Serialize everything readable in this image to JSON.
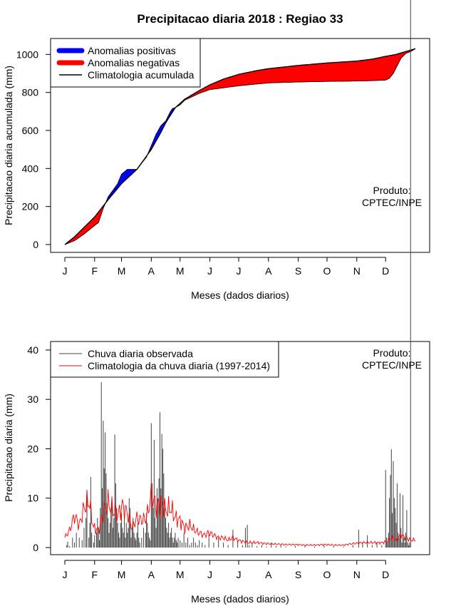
{
  "chart_data": [
    {
      "type": "area",
      "title": "Precipitacao diaria 2018 : Regiao 33",
      "xlabel": "Meses (dados diarios)",
      "ylabel": "Precipitacao diaria acumulada (mm)",
      "xlim": [
        0,
        365
      ],
      "ylim": [
        0,
        1050
      ],
      "yticks": [
        0,
        200,
        400,
        600,
        800,
        1000
      ],
      "month_ticks": [
        "J",
        "F",
        "M",
        "A",
        "M",
        "J",
        "J",
        "A",
        "S",
        "O",
        "N",
        "D"
      ],
      "month_days": [
        0,
        31,
        59,
        90,
        120,
        151,
        181,
        212,
        243,
        273,
        304,
        334
      ],
      "legend": [
        {
          "label": "Anomalias positivas",
          "color": "#0000ff"
        },
        {
          "label": "Anomalias negativas",
          "color": "#ff0000"
        },
        {
          "label": "Climatologia acumulada",
          "color": "#000000"
        }
      ],
      "annotation": [
        "Produto:",
        "CPTEC/INPE"
      ],
      "climatology_accumulated": {
        "day": [
          0,
          10,
          20,
          31,
          45,
          59,
          75,
          90,
          100,
          105,
          115,
          125,
          140,
          151,
          165,
          181,
          200,
          212,
          243,
          273,
          304,
          320,
          334,
          345,
          355,
          365
        ],
        "mm": [
          0,
          40,
          90,
          145,
          235,
          320,
          395,
          500,
          590,
          640,
          720,
          765,
          810,
          840,
          870,
          895,
          915,
          925,
          942,
          955,
          965,
          975,
          990,
          1000,
          1015,
          1030
        ]
      },
      "observed_accumulated": {
        "day": [
          0,
          10,
          20,
          31,
          35,
          40,
          45,
          55,
          59,
          65,
          75,
          85,
          90,
          95,
          100,
          105,
          110,
          112,
          115,
          120,
          125,
          140,
          151,
          181,
          212,
          243,
          273,
          304,
          320,
          334,
          338,
          342,
          346,
          350,
          355,
          360,
          365
        ],
        "mm": [
          0,
          20,
          55,
          100,
          115,
          190,
          250,
          320,
          370,
          395,
          395,
          460,
          520,
          580,
          625,
          650,
          700,
          715,
          720,
          735,
          760,
          795,
          815,
          835,
          850,
          855,
          858,
          860,
          862,
          865,
          875,
          900,
          940,
          980,
          1005,
          1015,
          1030
        ]
      }
    },
    {
      "type": "bar",
      "xlabel": "Meses (dados diarios)",
      "ylabel": "Precipitacao diaria (mm)",
      "xlim": [
        0,
        365
      ],
      "ylim": [
        0,
        41
      ],
      "yticks": [
        0,
        10,
        20,
        30,
        40
      ],
      "month_ticks": [
        "J",
        "F",
        "M",
        "A",
        "M",
        "J",
        "J",
        "A",
        "S",
        "O",
        "N",
        "D"
      ],
      "month_days": [
        0,
        31,
        59,
        90,
        120,
        151,
        181,
        212,
        243,
        273,
        304,
        334
      ],
      "legend": [
        {
          "label": "Chuva diaria observada",
          "color": "#444444"
        },
        {
          "label": "Climatologia da chuva diaria (1997-2014)",
          "color": "#ff0000"
        }
      ],
      "annotation": [
        "Produto:",
        "CPTEC/INPE"
      ],
      "daily_observed": {
        "day": [
          2,
          3,
          5,
          8,
          10,
          12,
          15,
          18,
          20,
          22,
          23,
          25,
          26,
          27,
          28,
          30,
          31,
          33,
          34,
          35,
          36,
          37,
          38,
          39,
          40,
          41,
          42,
          43,
          44,
          45,
          46,
          47,
          48,
          49,
          50,
          51,
          52,
          53,
          54,
          55,
          56,
          57,
          58,
          59,
          60,
          61,
          62,
          63,
          64,
          65,
          66,
          67,
          68,
          69,
          70,
          71,
          72,
          73,
          74,
          75,
          76,
          77,
          78,
          80,
          82,
          84,
          85,
          86,
          87,
          88,
          89,
          90,
          91,
          92,
          93,
          94,
          95,
          96,
          97,
          98,
          99,
          100,
          101,
          102,
          103,
          104,
          105,
          106,
          107,
          108,
          109,
          110,
          111,
          112,
          113,
          114,
          115,
          116,
          117,
          118,
          120,
          122,
          124,
          126,
          128,
          130,
          132,
          134,
          136,
          138,
          140,
          143,
          146,
          150,
          155,
          160,
          165,
          170,
          175,
          180,
          185,
          188,
          190,
          192,
          195,
          200,
          205,
          210,
          215,
          220,
          225,
          230,
          240,
          250,
          260,
          270,
          280,
          290,
          300,
          306,
          310,
          315,
          320,
          325,
          330,
          334,
          335,
          336,
          337,
          338,
          339,
          340,
          341,
          342,
          343,
          344,
          345,
          346,
          347,
          348,
          349,
          350,
          351,
          352,
          353,
          354,
          355,
          356,
          357,
          358,
          359,
          360
        ],
        "mm": [
          0.5,
          1.2,
          0.3,
          2.0,
          1.0,
          3.0,
          2.0,
          1.5,
          4.0,
          6.0,
          11.0,
          2.0,
          5.0,
          14.3,
          3.0,
          1.0,
          2.5,
          3.0,
          6.0,
          4.0,
          1.5,
          8.0,
          33.5,
          12.0,
          25.7,
          16.0,
          23.3,
          15.0,
          9.0,
          6.0,
          3.0,
          5.0,
          8.0,
          10.0,
          4.0,
          6.0,
          22.9,
          13.0,
          8.0,
          5.0,
          3.0,
          2.0,
          5.0,
          7.0,
          4.0,
          3.0,
          6.0,
          2.0,
          5.0,
          3.0,
          4.0,
          10.0,
          8.0,
          2.0,
          4.0,
          6.0,
          3.0,
          2.0,
          1.5,
          3.0,
          5.0,
          2.0,
          1.0,
          2.0,
          4.0,
          3.0,
          7.0,
          5.0,
          3.0,
          2.0,
          1.5,
          25.2,
          13.0,
          8.0,
          21.8,
          6.0,
          4.0,
          12.0,
          10.0,
          14.0,
          27.4,
          12.0,
          23.0,
          20.0,
          15.0,
          8.0,
          6.0,
          4.0,
          3.0,
          5.0,
          2.0,
          3.0,
          4.0,
          2.0,
          1.0,
          2.0,
          3.0,
          1.5,
          1.0,
          2.0,
          1.5,
          1.0,
          3.0,
          1.0,
          2.0,
          0.5,
          1.0,
          2.0,
          1.0,
          0.5,
          1.5,
          1.0,
          0.5,
          3.0,
          1.0,
          2.0,
          1.0,
          0.5,
          3.6,
          1.0,
          0.5,
          4.0,
          4.6,
          0.5,
          1.0,
          0.3,
          0.5,
          0.2,
          1.0,
          0.3,
          0.5,
          0.2,
          0.3,
          0.5,
          0.2,
          0.4,
          0.3,
          0.2,
          0.5,
          3.6,
          1.0,
          2.5,
          0.5,
          1.0,
          0.5,
          15.7,
          2.0,
          1.0,
          3.0,
          10.0,
          14.7,
          19.9,
          7.0,
          17.5,
          10.0,
          8.0,
          5.0,
          13.0,
          3.0,
          2.0,
          11.0,
          4.0,
          1.0,
          10.6,
          2.0,
          1.0,
          3.0,
          7.6,
          1.0,
          0.5,
          1.0
        ]
      },
      "daily_climatology": {
        "day": [
          0,
          5,
          10,
          15,
          20,
          25,
          30,
          35,
          40,
          45,
          50,
          55,
          60,
          65,
          70,
          75,
          80,
          85,
          90,
          95,
          100,
          105,
          110,
          115,
          120,
          125,
          130,
          135,
          140,
          145,
          150,
          155,
          160,
          165,
          170,
          175,
          180,
          190,
          200,
          210,
          220,
          230,
          240,
          250,
          260,
          270,
          280,
          290,
          300,
          310,
          320,
          330,
          335,
          340,
          345,
          350,
          355,
          360,
          365
        ],
        "mm": [
          2.0,
          3.5,
          6.5,
          4.5,
          8.0,
          9.5,
          4.0,
          3.5,
          7.0,
          9.0,
          7.5,
          6.5,
          8.5,
          7.0,
          4.0,
          6.0,
          5.5,
          6.0,
          10.5,
          8.5,
          9.0,
          7.5,
          8.0,
          6.0,
          5.5,
          4.0,
          4.5,
          3.5,
          3.0,
          2.5,
          3.0,
          2.5,
          2.0,
          2.0,
          1.5,
          2.0,
          1.5,
          1.0,
          1.0,
          0.8,
          0.7,
          0.6,
          0.6,
          0.5,
          0.5,
          0.6,
          0.5,
          0.5,
          0.8,
          1.0,
          1.0,
          1.0,
          1.2,
          2.0,
          1.5,
          2.5,
          2.0,
          1.5,
          1.5
        ]
      }
    }
  ]
}
